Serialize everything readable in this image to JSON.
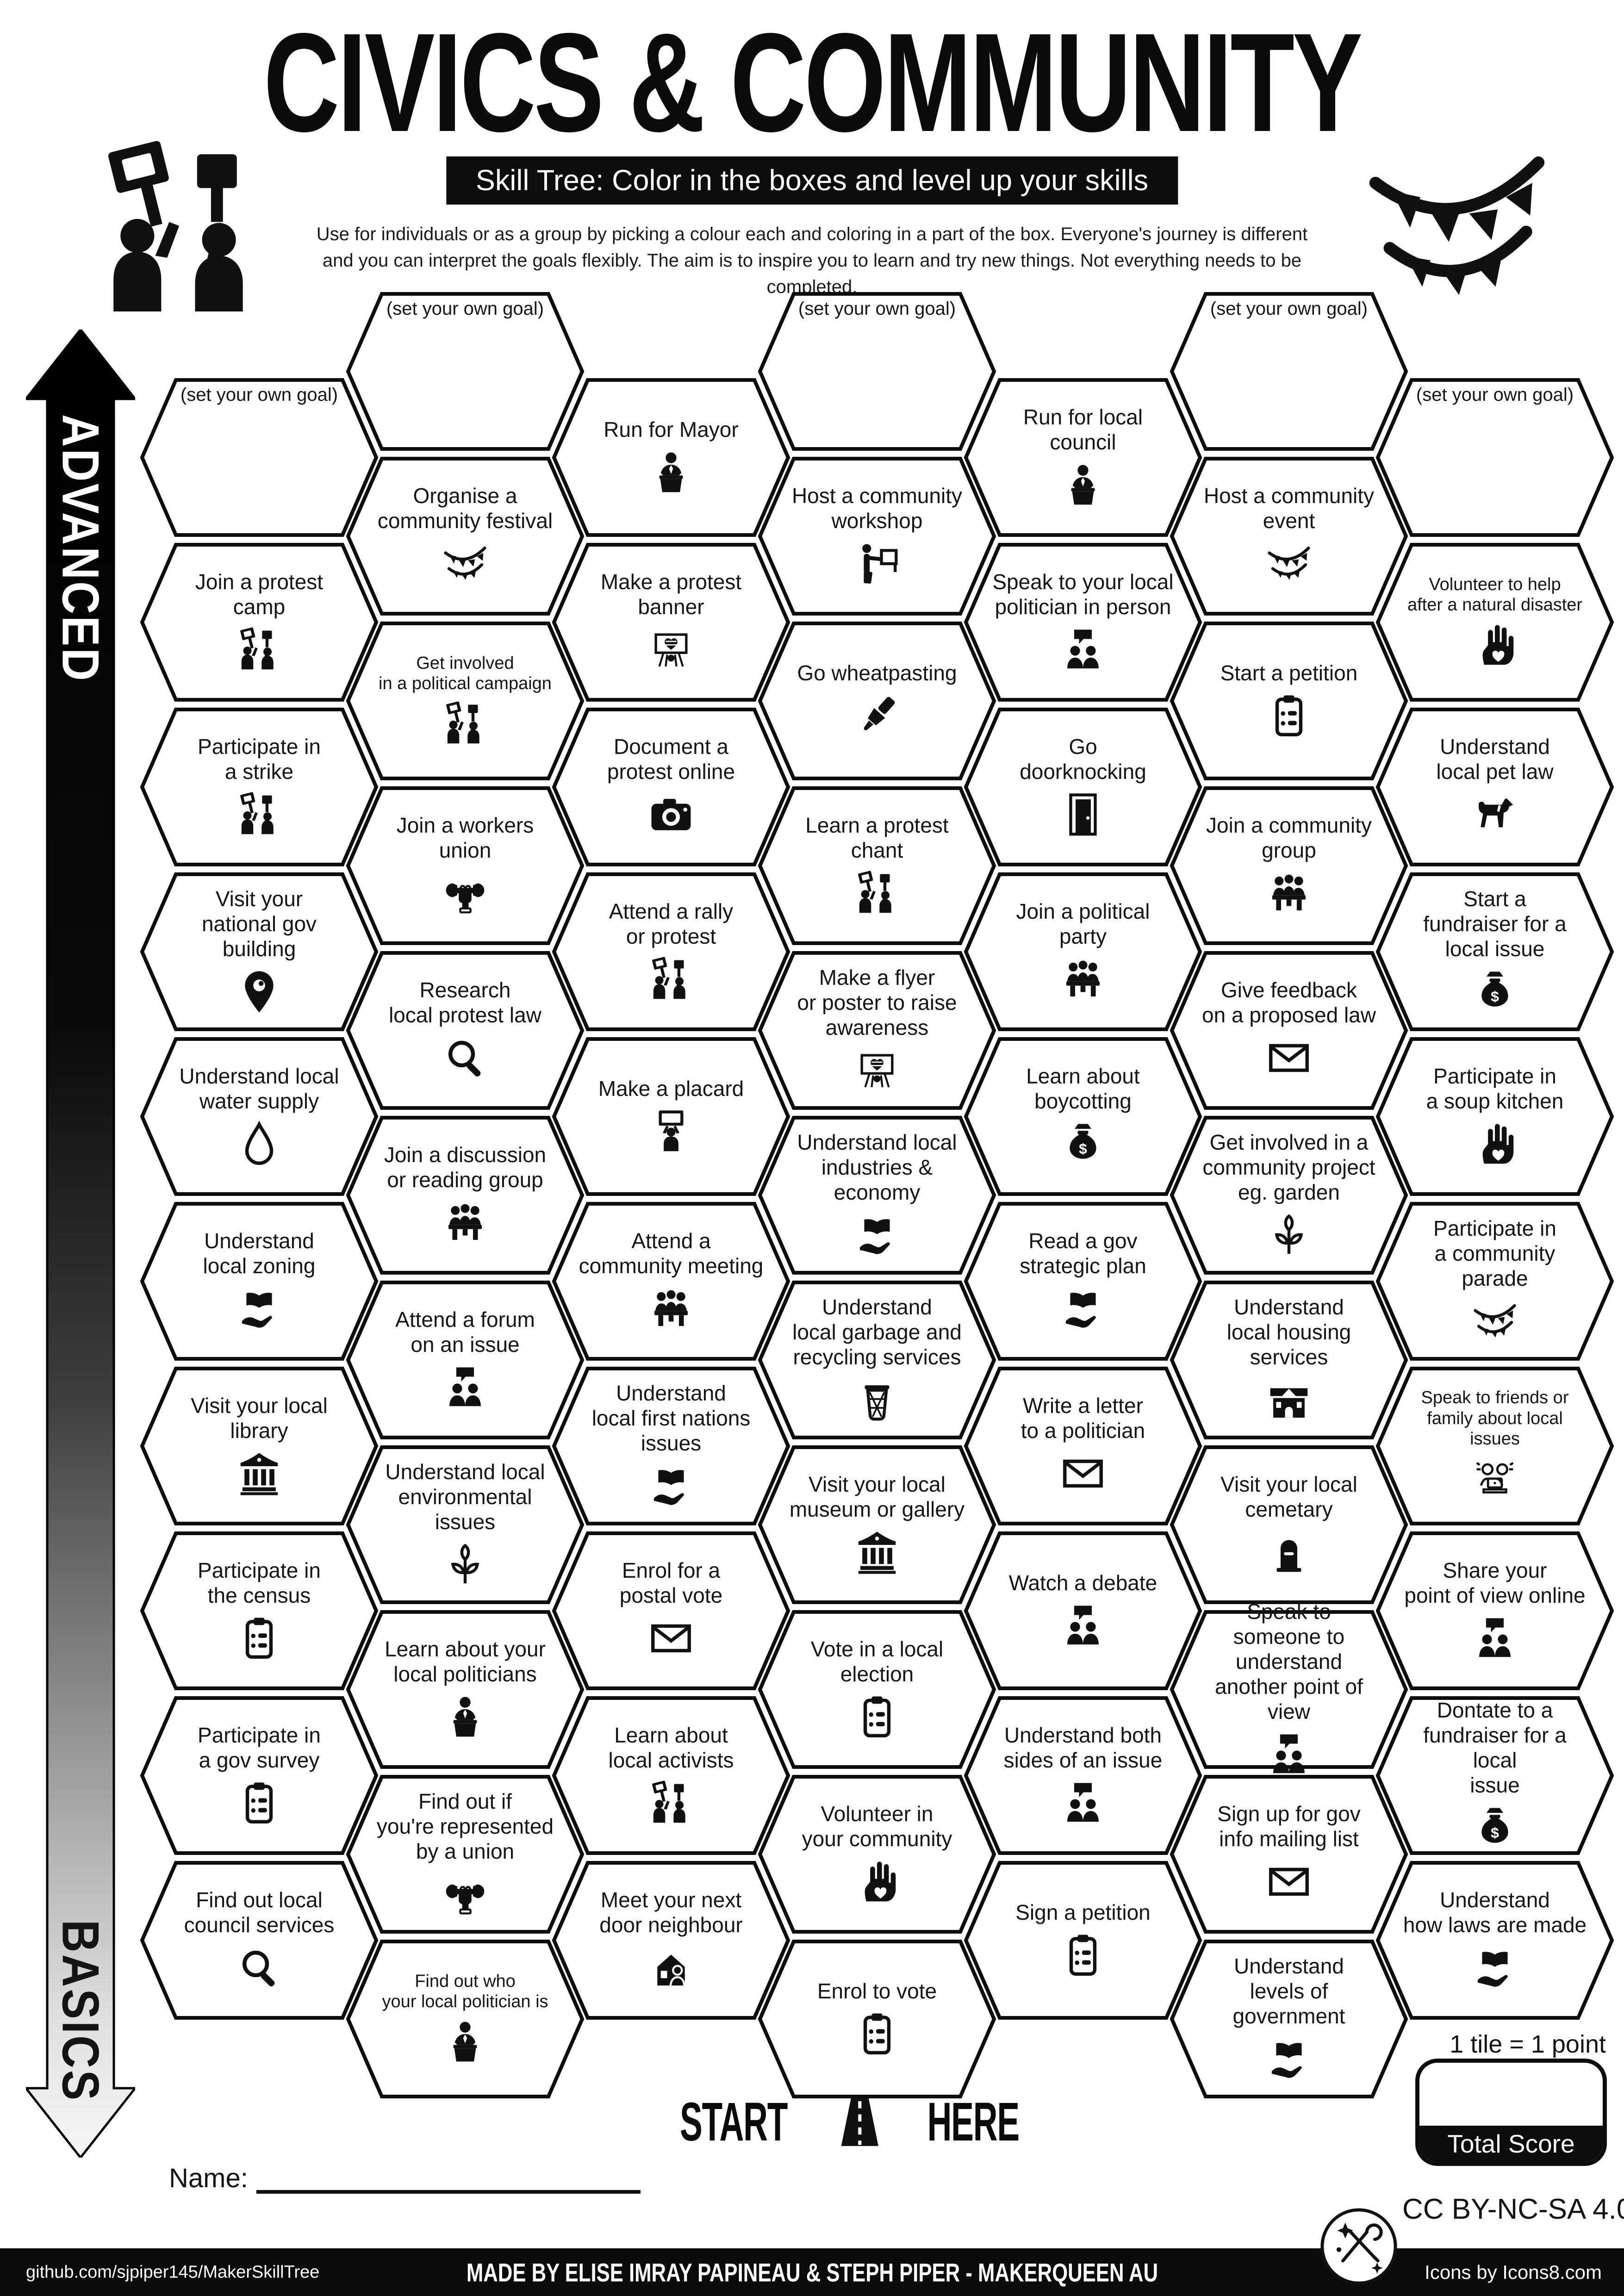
{
  "header": {
    "title": "CIVICS & COMMUNITY",
    "banner": "Skill Tree:  Color in the boxes and level up your skills",
    "description": "Use for individuals or as a group by picking a colour each and coloring in a part of the box.  Everyone's journey is different and you can interpret the goals flexibly.  The aim is to inspire you to learn and try new things. Not everything needs to be completed."
  },
  "axis": {
    "top": "ADVANCED",
    "bottom": "BASICS"
  },
  "start": {
    "left": "START",
    "right": "HERE"
  },
  "score": {
    "note": "1 tile = 1 point",
    "label": "Total Score"
  },
  "name_label": "Name:",
  "license": "CC BY-NC-SA 4.0",
  "footer": {
    "left": "github.com/sjpiper145/MakerSkillTree",
    "center": "MADE BY ELISE IMRAY PAPINEAU & STEPH PIPER  -  MAKERQUEEN AU",
    "right": "Icons by Icons8.com"
  },
  "hexes": [
    {
      "col": 0,
      "row": 0,
      "goal": true,
      "label": "(set your own goal)"
    },
    {
      "col": 0,
      "row": 1,
      "label": "Join a protest\ncamp",
      "icon": "protest"
    },
    {
      "col": 0,
      "row": 2,
      "label": "Participate in\na strike",
      "icon": "protest"
    },
    {
      "col": 0,
      "row": 3,
      "label": "Visit your\nnational gov building",
      "icon": "map-pin"
    },
    {
      "col": 0,
      "row": 4,
      "label": "Understand local\nwater supply",
      "icon": "water-drop"
    },
    {
      "col": 0,
      "row": 5,
      "label": "Understand\nlocal zoning",
      "icon": "book-hand"
    },
    {
      "col": 0,
      "row": 6,
      "label": "Visit your local\nlibrary",
      "icon": "bank"
    },
    {
      "col": 0,
      "row": 7,
      "label": "Participate in\nthe census",
      "icon": "clipboard"
    },
    {
      "col": 0,
      "row": 8,
      "label": "Participate in\na gov survey",
      "icon": "clipboard"
    },
    {
      "col": 0,
      "row": 9,
      "label": "Find out local\ncouncil services",
      "icon": "magnifier"
    },
    {
      "col": 1,
      "row": 0,
      "goal": true,
      "label": "(set your own goal)"
    },
    {
      "col": 1,
      "row": 1,
      "label": "Organise a\ncommunity festival",
      "icon": "bunting"
    },
    {
      "col": 1,
      "row": 2,
      "label": "Get involved\nin a political campaign",
      "icon": "protest"
    },
    {
      "col": 1,
      "row": 3,
      "label": "Join a workers\nunion",
      "icon": "wrench-fist"
    },
    {
      "col": 1,
      "row": 4,
      "label": "Research\nlocal protest law",
      "icon": "magnifier"
    },
    {
      "col": 1,
      "row": 5,
      "label": "Join a discussion\nor reading group",
      "icon": "group-table"
    },
    {
      "col": 1,
      "row": 6,
      "label": "Attend a forum\non an issue",
      "icon": "two-people-speech"
    },
    {
      "col": 1,
      "row": 7,
      "label": "Understand local\nenvironmental issues",
      "icon": "plant"
    },
    {
      "col": 1,
      "row": 8,
      "label": "Learn about your\nlocal politicians",
      "icon": "podium-person"
    },
    {
      "col": 1,
      "row": 9,
      "label": "Find out if\nyou're represented\nby a union",
      "icon": "wrench-fist"
    },
    {
      "col": 1,
      "row": 10,
      "label": "Find out who\nyour local politician is",
      "icon": "podium-person"
    },
    {
      "col": 2,
      "row": 0,
      "label": "Run for Mayor",
      "icon": "podium-person"
    },
    {
      "col": 2,
      "row": 1,
      "label": "Make a protest\nbanner",
      "icon": "banner-heart"
    },
    {
      "col": 2,
      "row": 2,
      "label": "Document a\nprotest online",
      "icon": "camera"
    },
    {
      "col": 2,
      "row": 3,
      "label": "Attend a rally\nor protest",
      "icon": "protest"
    },
    {
      "col": 2,
      "row": 4,
      "label": "Make a placard",
      "icon": "placard"
    },
    {
      "col": 2,
      "row": 5,
      "label": "Attend a\ncommunity meeting",
      "icon": "group-table"
    },
    {
      "col": 2,
      "row": 6,
      "label": "Understand\nlocal first nations\nissues",
      "icon": "book-hand"
    },
    {
      "col": 2,
      "row": 7,
      "label": "Enrol for a\npostal vote",
      "icon": "envelope"
    },
    {
      "col": 2,
      "row": 8,
      "label": "Learn about\nlocal activists",
      "icon": "protest"
    },
    {
      "col": 2,
      "row": 9,
      "label": "Meet your next\ndoor neighbour",
      "icon": "house-person"
    },
    {
      "col": 3,
      "row": 0,
      "goal": true,
      "label": "(set your own goal)"
    },
    {
      "col": 3,
      "row": 1,
      "label": "Host a community\nworkshop",
      "icon": "presenter"
    },
    {
      "col": 3,
      "row": 2,
      "label": "Go wheatpasting",
      "icon": "paste-brush"
    },
    {
      "col": 3,
      "row": 3,
      "label": "Learn a protest\nchant",
      "icon": "protest"
    },
    {
      "col": 3,
      "row": 4,
      "label": "Make a flyer\nor poster to raise\nawareness",
      "icon": "banner-heart"
    },
    {
      "col": 3,
      "row": 5,
      "label": "Understand local\nindustries & economy",
      "icon": "book-hand"
    },
    {
      "col": 3,
      "row": 6,
      "label": "Understand\nlocal garbage and\nrecycling services",
      "icon": "trash"
    },
    {
      "col": 3,
      "row": 7,
      "label": "Visit your local\nmuseum or gallery",
      "icon": "bank"
    },
    {
      "col": 3,
      "row": 8,
      "label": "Vote in a local\nelection",
      "icon": "clipboard"
    },
    {
      "col": 3,
      "row": 9,
      "label": "Volunteer in\nyour community",
      "icon": "heart-hand"
    },
    {
      "col": 3,
      "row": 10,
      "label": "Enrol to vote",
      "icon": "clipboard"
    },
    {
      "col": 4,
      "row": 0,
      "label": "Run for local\ncouncil",
      "icon": "podium-person"
    },
    {
      "col": 4,
      "row": 1,
      "label": "Speak to your local\npolitician in person",
      "icon": "two-people-speech"
    },
    {
      "col": 4,
      "row": 2,
      "label": "Go\ndoorknocking",
      "icon": "door"
    },
    {
      "col": 4,
      "row": 3,
      "label": "Join a political\nparty",
      "icon": "group-table"
    },
    {
      "col": 4,
      "row": 4,
      "label": "Learn about\nboycotting",
      "icon": "money-bag"
    },
    {
      "col": 4,
      "row": 5,
      "label": "Read a gov\nstrategic plan",
      "icon": "book-hand"
    },
    {
      "col": 4,
      "row": 6,
      "label": "Write a letter\nto a politician",
      "icon": "envelope"
    },
    {
      "col": 4,
      "row": 7,
      "label": "Watch a debate",
      "icon": "two-people-speech"
    },
    {
      "col": 4,
      "row": 8,
      "label": "Understand both\nsides of an issue",
      "icon": "two-people-speech"
    },
    {
      "col": 4,
      "row": 9,
      "label": "Sign a petition",
      "icon": "clipboard"
    },
    {
      "col": 5,
      "row": 0,
      "goal": true,
      "label": "(set your own goal)"
    },
    {
      "col": 5,
      "row": 1,
      "label": "Host a community\nevent",
      "icon": "bunting"
    },
    {
      "col": 5,
      "row": 2,
      "label": "Start a petition",
      "icon": "clipboard"
    },
    {
      "col": 5,
      "row": 3,
      "label": "Join a community\ngroup",
      "icon": "group-table"
    },
    {
      "col": 5,
      "row": 4,
      "label": "Give feedback\non a proposed law",
      "icon": "envelope"
    },
    {
      "col": 5,
      "row": 5,
      "label": "Get involved in a\ncommunity project\neg. garden",
      "icon": "plant"
    },
    {
      "col": 5,
      "row": 6,
      "label": "Understand\nlocal housing services",
      "icon": "house"
    },
    {
      "col": 5,
      "row": 7,
      "label": "Visit your local\ncemetary",
      "icon": "tombstone"
    },
    {
      "col": 5,
      "row": 8,
      "label": "Speak to\nsomeone to understand\nanother point of view",
      "icon": "two-people-speech"
    },
    {
      "col": 5,
      "row": 9,
      "label": "Sign up for gov\ninfo mailing list",
      "icon": "envelope"
    },
    {
      "col": 5,
      "row": 10,
      "label": "Understand\nlevels of government",
      "icon": "book-hand"
    },
    {
      "col": 6,
      "row": 0,
      "goal": true,
      "label": "(set your own goal)"
    },
    {
      "col": 6,
      "row": 1,
      "label": "Volunteer to help\nafter a natural disaster",
      "icon": "heart-hand"
    },
    {
      "col": 6,
      "row": 2,
      "label": "Understand\nlocal pet law",
      "icon": "dog"
    },
    {
      "col": 6,
      "row": 3,
      "label": "Start a\nfundraiser for a\nlocal issue",
      "icon": "money-bag"
    },
    {
      "col": 6,
      "row": 4,
      "label": "Participate in\na soup kitchen",
      "icon": "heart-hand"
    },
    {
      "col": 6,
      "row": 5,
      "label": "Participate in\na community parade",
      "icon": "bunting"
    },
    {
      "col": 6,
      "row": 6,
      "label": "Speak to friends or\nfamily about local issues",
      "icon": "laptop-friends"
    },
    {
      "col": 6,
      "row": 7,
      "label": "Share your\npoint of view online",
      "icon": "two-people-speech"
    },
    {
      "col": 6,
      "row": 8,
      "label": "Dontate to a\nfundraiser for a local\nissue",
      "icon": "money-bag"
    },
    {
      "col": 6,
      "row": 9,
      "label": "Understand\nhow laws are made",
      "icon": "book-hand"
    }
  ]
}
